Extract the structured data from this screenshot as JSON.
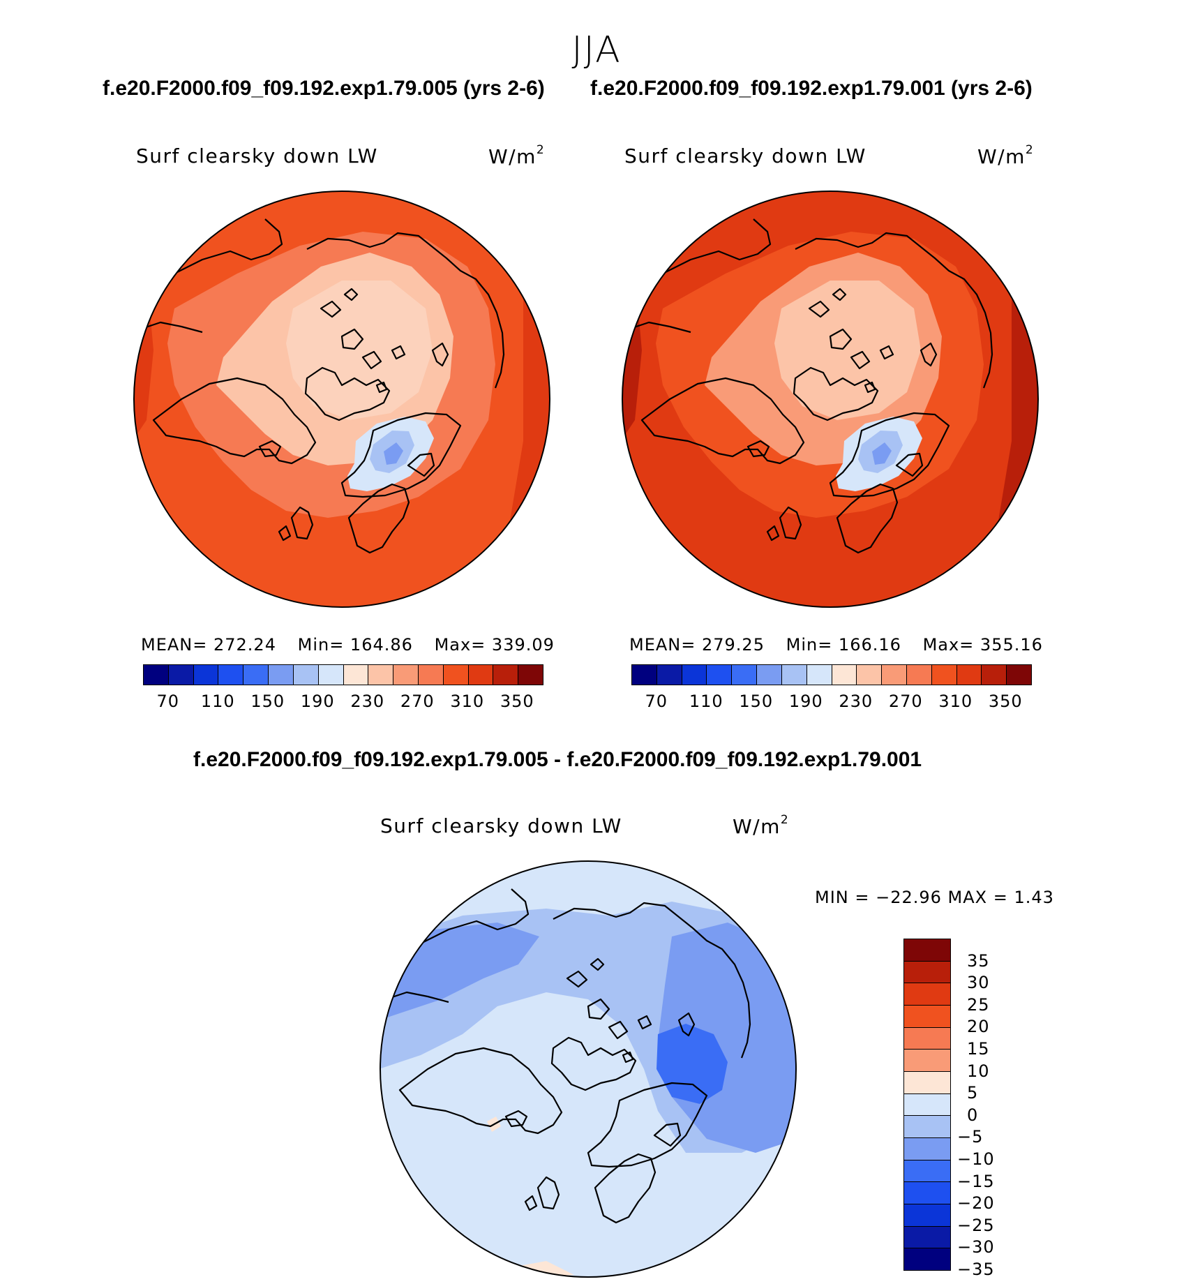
{
  "season": "JJA",
  "case_a_title": "f.e20.F2000.f09_f09.192.exp1.79.005 (yrs 2-6)",
  "case_b_title": "f.e20.F2000.f09_f09.192.exp1.79.001 (yrs 2-6)",
  "diff_title": "f.e20.F2000.f09_f09.192.exp1.79.005 - f.e20.F2000.f09_f09.192.exp1.79.001",
  "variable_label": "Surf clearsky down LW",
  "units_base": "W/m",
  "units_exp": "2",
  "panel_a": {
    "mean": "MEAN= 272.24",
    "min": "Min= 164.86",
    "max": "Max= 339.09"
  },
  "panel_b": {
    "mean": "MEAN= 279.25",
    "min": "Min= 166.16",
    "max": "Max= 355.16"
  },
  "diff_stats": "MIN = −22.96 MAX =    1.43",
  "abs_colorbar": {
    "colors": [
      "#00007f",
      "#0a1aa6",
      "#0b35d8",
      "#1e50f0",
      "#3a6df5",
      "#7a9cf2",
      "#a8c2f4",
      "#d6e6fa",
      "#fde6d6",
      "#fcc4a8",
      "#f99b77",
      "#f67a53",
      "#f0521f",
      "#e03a12",
      "#b81f0a",
      "#7e0606"
    ],
    "tick_labels": [
      "70",
      "110",
      "150",
      "190",
      "230",
      "270",
      "310",
      "350"
    ]
  },
  "diff_colorbar": {
    "colors": [
      "#7e0606",
      "#b81f0a",
      "#e03a12",
      "#f0521f",
      "#f67a53",
      "#f99b77",
      "#fde6d6",
      "#d6e6fa",
      "#a8c2f4",
      "#7a9cf2",
      "#3a6df5",
      "#1e50f0",
      "#0b35d8",
      "#0a1aa6",
      "#00007f"
    ],
    "tick_labels": [
      "35",
      "30",
      "25",
      "20",
      "15",
      "10",
      "5",
      "0",
      "−5",
      "−10",
      "−15",
      "−20",
      "−25",
      "−30",
      "−35"
    ]
  },
  "map_colors": {
    "a": {
      "outer": "#f0521f",
      "mid": "#f67a53",
      "inner": "#fcc4a8",
      "pole": "#fcd2bc",
      "ice1": "#d6e6fa",
      "ice2": "#a8c2f4",
      "ice3": "#7a9cf2",
      "warm": "#e03a12"
    },
    "b": {
      "outer": "#e03a12",
      "mid": "#f0521f",
      "inner": "#f99b77",
      "pole": "#fcc4a8",
      "ice1": "#d6e6fa",
      "ice2": "#a8c2f4",
      "ice3": "#7a9cf2",
      "warm": "#b81f0a"
    },
    "d": {
      "base": "#d6e6fa",
      "band": "#a8c2f4",
      "cool": "#7a9cf2",
      "deep": "#3a6df5",
      "warm": "#fde6d6"
    }
  }
}
